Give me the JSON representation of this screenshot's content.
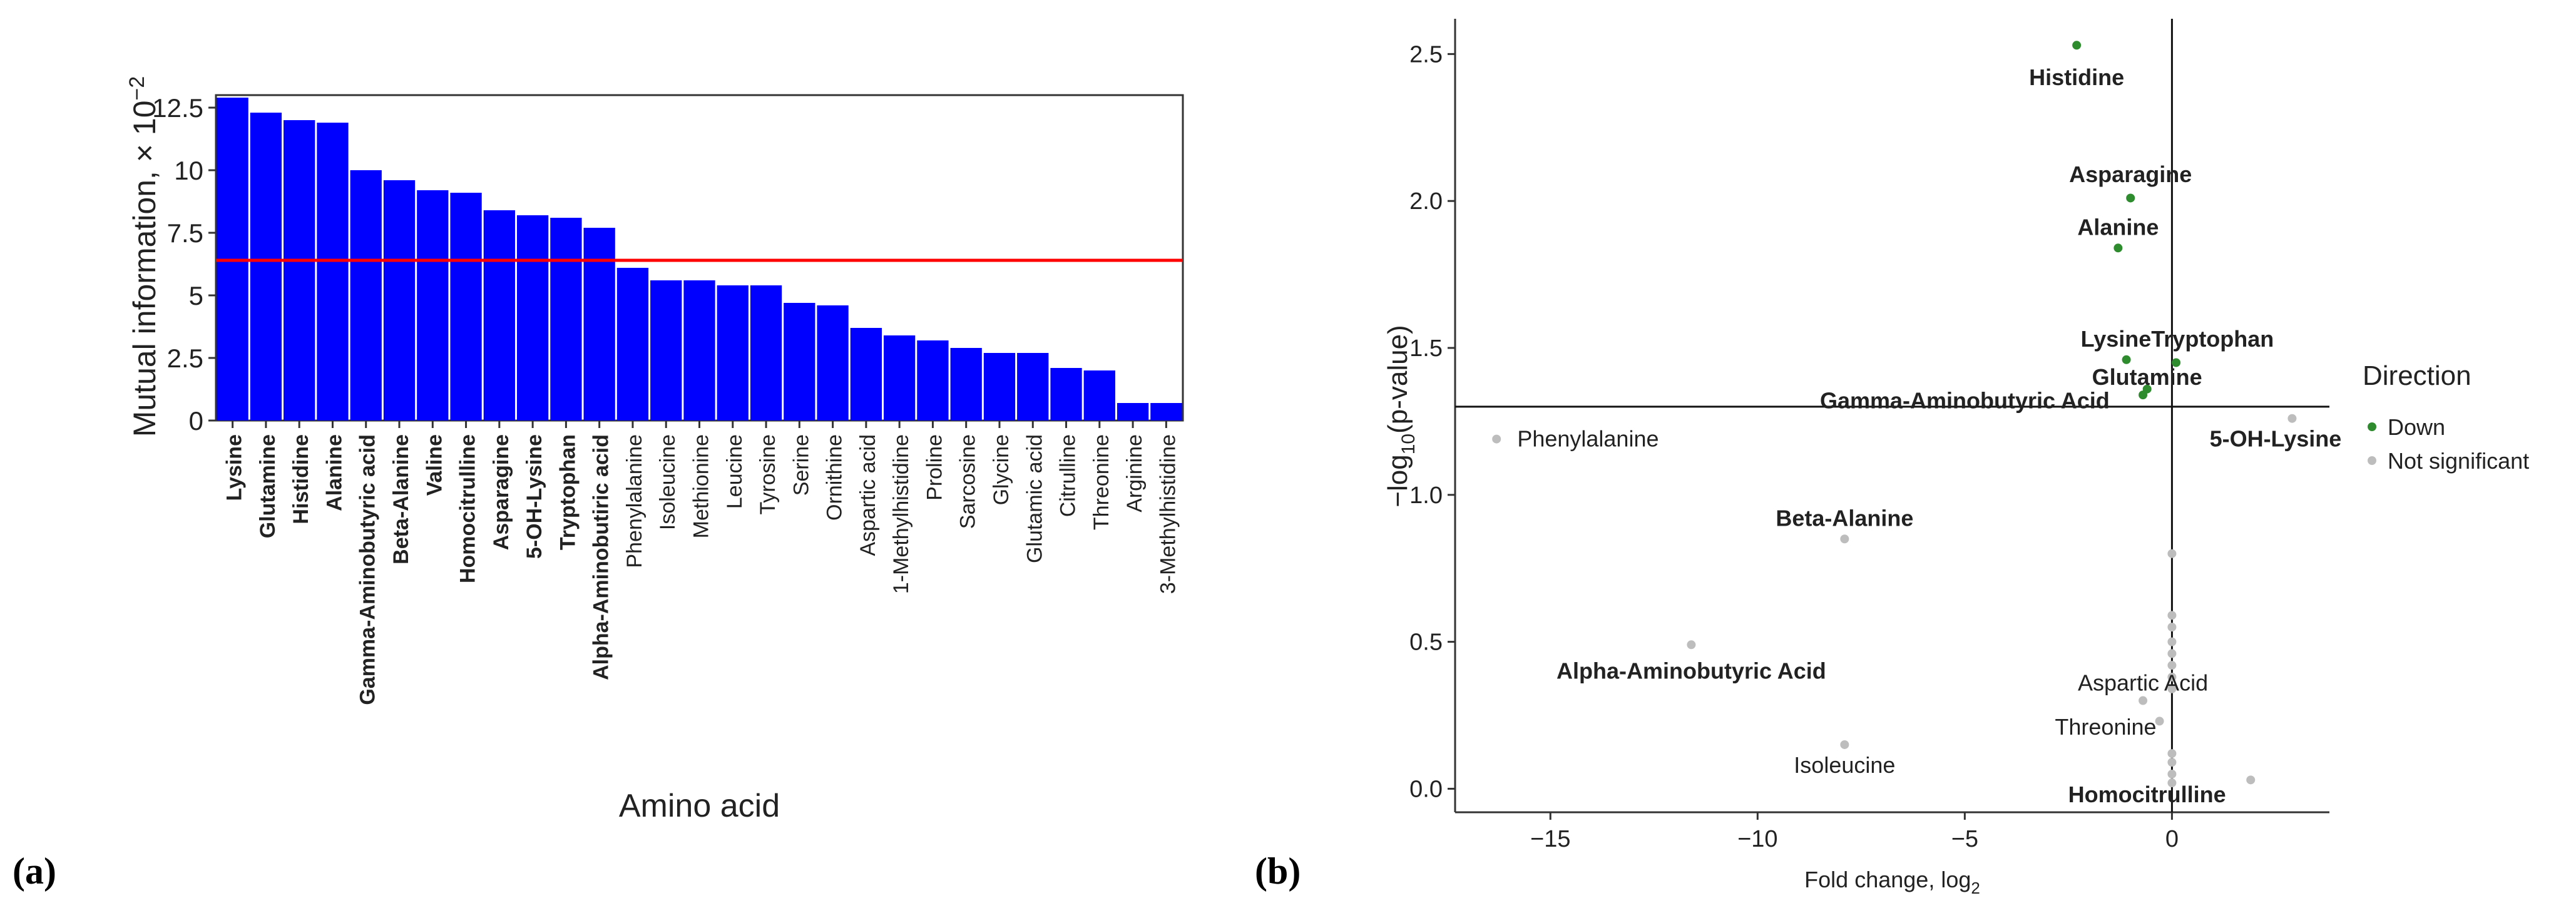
{
  "panel_labels": [
    "(a)",
    "(b)"
  ],
  "chart_data": [
    {
      "type": "bar",
      "xlabel": "Amino acid",
      "ylabel": "Mutual information,",
      "ylabel_multiplier": "× 10",
      "ylabel_exponent": "−2",
      "ylim": [
        0,
        13
      ],
      "yticks": [
        0,
        2.5,
        5,
        7.5,
        10,
        12.5
      ],
      "ytick_labels": [
        "0",
        "2.5",
        "5",
        "7.5",
        "10",
        "12.5"
      ],
      "threshold": 6.4,
      "bar_color": "#0000ff",
      "threshold_color": "#ff0000",
      "categories": [
        "Lysine",
        "Glutamine",
        "Histidine",
        "Alanine",
        "Gamma-Aminobutyric acid",
        "Beta-Alanine",
        "Valine",
        "Homocitrulline",
        "Asparagine",
        "5-OH-Lysine",
        "Tryptophan",
        "Alpha-Aminobutiric acid",
        "Phenylalanine",
        "Isoleucine",
        "Methionine",
        "Leucine",
        "Tyrosine",
        "Serine",
        "Ornithine",
        "Aspartic acid",
        "1-Methylhistidine",
        "Proline",
        "Sarcosine",
        "Glycine",
        "Glutamic acid",
        "Citrulline",
        "Threonine",
        "Arginine",
        "3-Methylhistidine"
      ],
      "values": [
        12.9,
        12.3,
        12.0,
        11.9,
        10.0,
        9.6,
        9.2,
        9.1,
        8.4,
        8.2,
        8.1,
        7.7,
        6.1,
        5.6,
        5.6,
        5.4,
        5.4,
        4.7,
        4.6,
        3.7,
        3.4,
        3.2,
        2.9,
        2.7,
        2.7,
        2.1,
        2.0,
        0.7,
        0.7
      ],
      "bold": [
        true,
        true,
        true,
        true,
        true,
        true,
        true,
        true,
        true,
        true,
        true,
        true,
        false,
        false,
        false,
        false,
        false,
        false,
        false,
        false,
        false,
        false,
        false,
        false,
        false,
        false,
        false,
        false,
        false
      ]
    },
    {
      "type": "scatter",
      "xlabel": "Fold change, log",
      "xlabel_subscript": "2",
      "ylabel_prefix": "−log",
      "ylabel_subscript": "10",
      "ylabel_suffix": "(p-value)",
      "xlim": [
        -17.3,
        3.8
      ],
      "ylim": [
        -0.08,
        2.62
      ],
      "xticks": [
        -15,
        -10,
        -5,
        0
      ],
      "xtick_labels": [
        "−15",
        "−10",
        "−5",
        "0"
      ],
      "yticks": [
        0.0,
        0.5,
        1.0,
        1.5,
        2.0,
        2.5
      ],
      "ytick_labels": [
        "0.0",
        "0.5",
        "1.0",
        "1.5",
        "2.0",
        "2.5"
      ],
      "hline": 1.3,
      "vline": 0,
      "legend_title": "Direction",
      "legend": [
        {
          "label": "Down",
          "color": "#2e8b2e"
        },
        {
          "label": "Not significant",
          "color": "#bdbdbd"
        }
      ],
      "colors": {
        "Down": "#2e8b2e",
        "Not significant": "#bdbdbd"
      },
      "points": [
        {
          "x": -2.3,
          "y": 2.53,
          "group": "Down",
          "label": "Histidine",
          "bold": true,
          "lx": -2.3,
          "ly": 2.42,
          "anchor": "middle"
        },
        {
          "x": -1.0,
          "y": 2.01,
          "group": "Down",
          "label": "Asparagine",
          "bold": true,
          "lx": -1.0,
          "ly": 2.09,
          "anchor": "middle"
        },
        {
          "x": -1.3,
          "y": 1.84,
          "group": "Down",
          "label": "Alanine",
          "bold": true,
          "lx": -1.3,
          "ly": 1.91,
          "anchor": "middle"
        },
        {
          "x": -1.1,
          "y": 1.46,
          "group": "Down",
          "label": "Lysine",
          "bold": true,
          "lx": -0.5,
          "ly": 1.53,
          "anchor": "end"
        },
        {
          "x": 0.1,
          "y": 1.45,
          "group": "Down",
          "label": "Tryptophan",
          "bold": true,
          "lx": -0.5,
          "ly": 1.53,
          "anchor": "start"
        },
        {
          "x": -0.6,
          "y": 1.36,
          "group": "Down",
          "label": "Glutamine",
          "bold": true,
          "lx": -0.6,
          "ly": 1.4,
          "anchor": "middle"
        },
        {
          "x": -0.7,
          "y": 1.34,
          "group": "Down",
          "label": "Gamma-Aminobutyric Acid",
          "bold": true,
          "lx": -5.0,
          "ly": 1.32,
          "anchor": "middle"
        },
        {
          "x": 2.9,
          "y": 1.26,
          "group": "Not significant",
          "label": "5-OH-Lysine",
          "bold": true,
          "lx": 2.5,
          "ly": 1.19,
          "anchor": "middle"
        },
        {
          "x": -16.3,
          "y": 1.19,
          "group": "Not significant",
          "label": "Phenylalanine",
          "bold": false,
          "lx": -15.8,
          "ly": 1.19,
          "anchor": "start"
        },
        {
          "x": -7.9,
          "y": 0.85,
          "group": "Not significant",
          "label": "Beta-Alanine",
          "bold": true,
          "lx": -7.9,
          "ly": 0.92,
          "anchor": "middle"
        },
        {
          "x": -11.6,
          "y": 0.49,
          "group": "Not significant",
          "label": "Alpha-Aminobutyric Acid",
          "bold": true,
          "lx": -11.6,
          "ly": 0.4,
          "anchor": "middle"
        },
        {
          "x": -0.7,
          "y": 0.3,
          "group": "Not significant",
          "label": "Aspartic Acid",
          "bold": false,
          "lx": -0.7,
          "ly": 0.36,
          "anchor": "middle"
        },
        {
          "x": -0.3,
          "y": 0.23,
          "group": "Not significant",
          "label": "Threonine",
          "bold": false,
          "lx": -1.6,
          "ly": 0.21,
          "anchor": "middle"
        },
        {
          "x": -7.9,
          "y": 0.15,
          "group": "Not significant",
          "label": "Isoleucine",
          "bold": false,
          "lx": -7.9,
          "ly": 0.08,
          "anchor": "middle"
        },
        {
          "x": 1.9,
          "y": 0.03,
          "group": "Not significant",
          "label": "Homocitrulline",
          "bold": true,
          "lx": -0.6,
          "ly": -0.02,
          "anchor": "middle"
        },
        {
          "x": 0.0,
          "y": 0.8,
          "group": "Not significant",
          "label": ""
        },
        {
          "x": 0.0,
          "y": 0.59,
          "group": "Not significant",
          "label": ""
        },
        {
          "x": 0.0,
          "y": 0.55,
          "group": "Not significant",
          "label": ""
        },
        {
          "x": 0.0,
          "y": 0.5,
          "group": "Not significant",
          "label": ""
        },
        {
          "x": 0.0,
          "y": 0.46,
          "group": "Not significant",
          "label": ""
        },
        {
          "x": 0.0,
          "y": 0.42,
          "group": "Not significant",
          "label": ""
        },
        {
          "x": 0.0,
          "y": 0.38,
          "group": "Not significant",
          "label": ""
        },
        {
          "x": 0.0,
          "y": 0.34,
          "group": "Not significant",
          "label": ""
        },
        {
          "x": 0.0,
          "y": 0.12,
          "group": "Not significant",
          "label": ""
        },
        {
          "x": 0.0,
          "y": 0.09,
          "group": "Not significant",
          "label": ""
        },
        {
          "x": 0.0,
          "y": 0.05,
          "group": "Not significant",
          "label": ""
        },
        {
          "x": 0.0,
          "y": 0.02,
          "group": "Not significant",
          "label": ""
        }
      ]
    }
  ]
}
